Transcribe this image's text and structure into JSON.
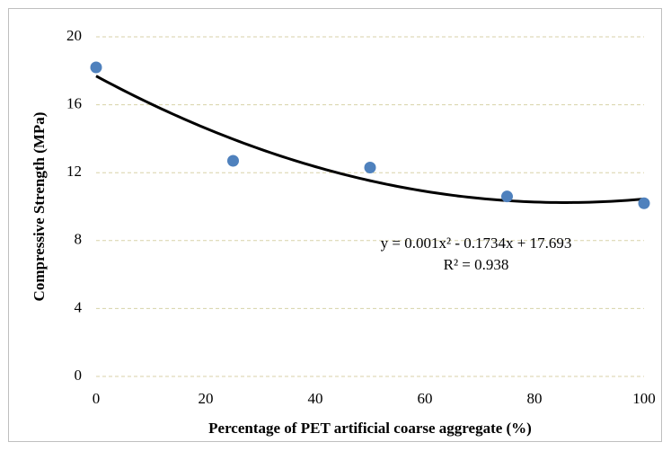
{
  "chart_data": {
    "type": "scatter",
    "x_label": "Percentage of PET artificial coarse aggregate (%)",
    "y_label": "Compressive Strength (MPa)",
    "series": [
      {
        "x": [
          0,
          25,
          50,
          75,
          100
        ],
        "values": [
          18.2,
          12.7,
          12.3,
          10.6,
          10.2
        ],
        "color": "#4f81bd"
      }
    ],
    "xlim": [
      0,
      100
    ],
    "xticks": [
      0,
      20,
      40,
      60,
      80,
      100
    ],
    "ylim": [
      0,
      20
    ],
    "yticks": [
      0,
      4,
      8,
      12,
      16,
      20
    ],
    "grid": true,
    "trendline": {
      "order": 2,
      "color": "#000000",
      "equation": "y = 0.001x² - 0.1734x + 17.693",
      "r_squared": "R² = 0.938"
    }
  }
}
